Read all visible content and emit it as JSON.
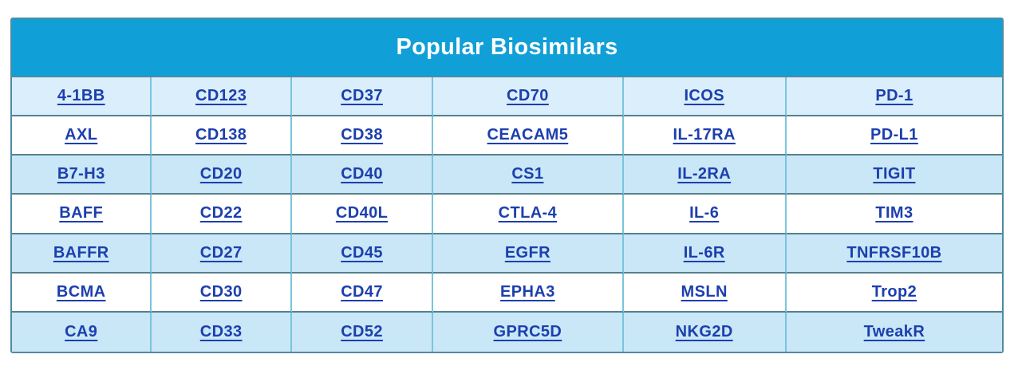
{
  "header": {
    "title": "Popular Biosimilars"
  },
  "colors": {
    "header_bg": "#119fd7",
    "header_text": "#ffffff",
    "row_light": "#daeefb",
    "row_blue": "#c9e7f6",
    "row_white": "#ffffff",
    "link": "#1c3fae",
    "border_outer": "#4f8ba3",
    "border_vertical": "#79c4de",
    "border_horizontal": "#55808e"
  },
  "table": {
    "rows": [
      [
        "4-1BB",
        "CD123",
        "CD37",
        "CD70",
        "ICOS",
        "PD-1"
      ],
      [
        "AXL",
        "CD138",
        "CD38",
        "CEACAM5",
        "IL-17RA",
        "PD-L1"
      ],
      [
        "B7-H3",
        "CD20",
        "CD40",
        "CS1",
        "IL-2RA",
        "TIGIT"
      ],
      [
        "BAFF",
        "CD22",
        "CD40L",
        "CTLA-4",
        "IL-6",
        "TIM3"
      ],
      [
        "BAFFR",
        "CD27",
        "CD45",
        "EGFR",
        "IL-6R",
        "TNFRSF10B"
      ],
      [
        "BCMA",
        "CD30",
        "CD47",
        "EPHA3",
        "MSLN",
        "Trop2"
      ],
      [
        "CA9",
        "CD33",
        "CD52",
        "GPRC5D",
        "NKG2D",
        "TweakR"
      ]
    ]
  }
}
